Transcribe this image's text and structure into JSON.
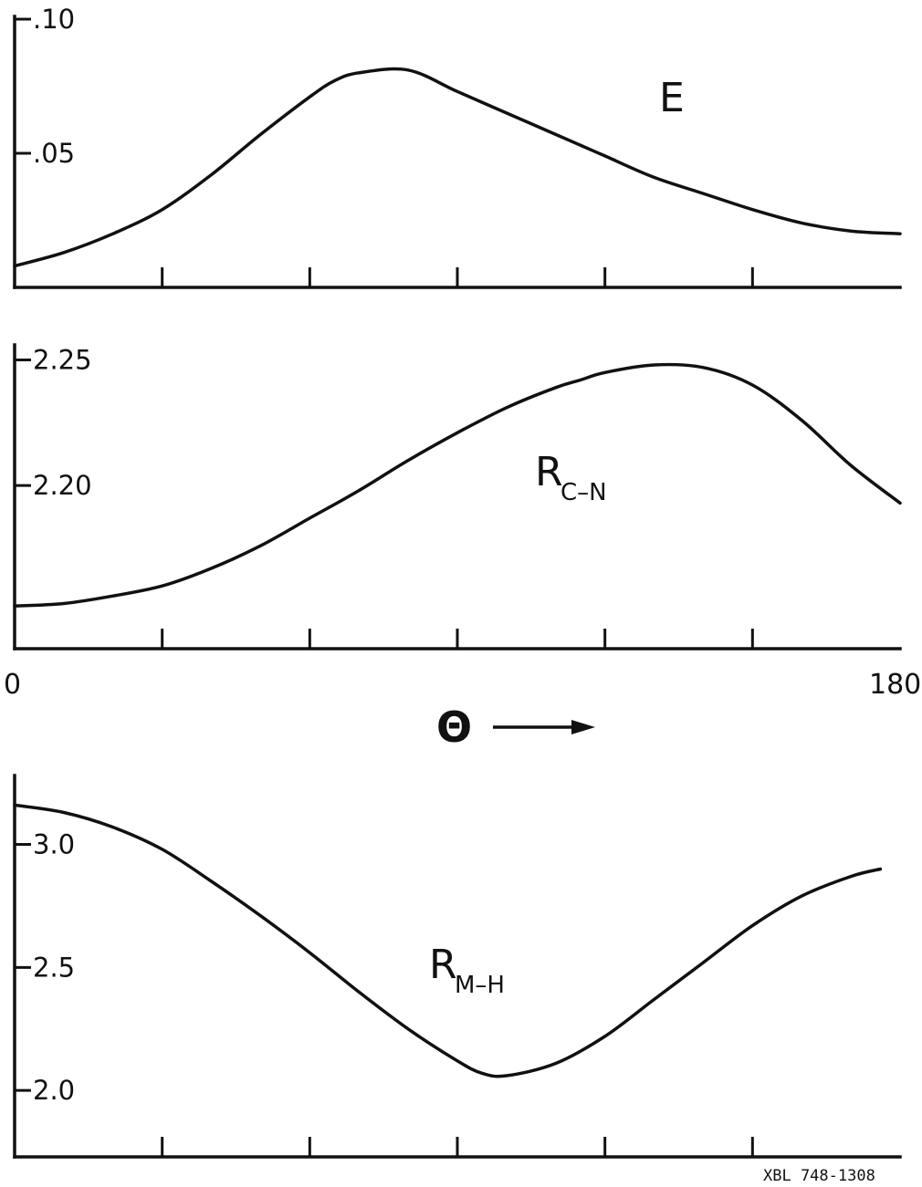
{
  "figure": {
    "x_axis": {
      "start_label": "0",
      "end_label": "180",
      "symbol": "Θ",
      "range": [
        0,
        180
      ]
    },
    "code_label": "XBL 748-1308"
  },
  "chart_data": [
    {
      "type": "line",
      "panel": "E",
      "label": {
        "main": "E",
        "sub": ""
      },
      "xlim": [
        0,
        180
      ],
      "ylim": [
        0.0,
        0.101
      ],
      "yticks": [
        {
          "value": 0.1,
          "label": ".10"
        },
        {
          "value": 0.05,
          "label": ".05"
        }
      ],
      "x": [
        0,
        10,
        20,
        30,
        40,
        50,
        60,
        65,
        70,
        80,
        90,
        100,
        110,
        120,
        130,
        140,
        150,
        160,
        170,
        180
      ],
      "y": [
        0.008,
        0.013,
        0.02,
        0.029,
        0.042,
        0.057,
        0.071,
        0.077,
        0.08,
        0.081,
        0.073,
        0.065,
        0.057,
        0.049,
        0.041,
        0.035,
        0.029,
        0.024,
        0.021,
        0.02
      ],
      "series": [
        {
          "values": [
            0.008,
            0.013,
            0.02,
            0.029,
            0.042,
            0.057,
            0.071,
            0.077,
            0.08,
            0.081,
            0.073,
            0.065,
            0.057,
            0.049,
            0.041,
            0.035,
            0.029,
            0.024,
            0.021,
            0.02
          ]
        }
      ],
      "xticks": [
        0,
        30,
        60,
        90,
        120,
        150,
        180
      ],
      "grid": false
    },
    {
      "type": "line",
      "panel": "R_C-N",
      "label": {
        "main": "R",
        "sub": "C–N"
      },
      "xlim": [
        0,
        180
      ],
      "ylim": [
        2.135,
        2.256
      ],
      "yticks": [
        {
          "value": 2.25,
          "label": "2.25"
        },
        {
          "value": 2.2,
          "label": "2.20"
        }
      ],
      "x": [
        0,
        10,
        20,
        30,
        40,
        50,
        60,
        70,
        80,
        90,
        100,
        110,
        115,
        120,
        130,
        140,
        150,
        160,
        170,
        180
      ],
      "y": [
        2.152,
        2.153,
        2.156,
        2.16,
        2.167,
        2.176,
        2.187,
        2.198,
        2.21,
        2.221,
        2.231,
        2.239,
        2.242,
        2.245,
        2.248,
        2.247,
        2.24,
        2.226,
        2.208,
        2.193
      ],
      "series": [
        {
          "values": [
            2.152,
            2.153,
            2.156,
            2.16,
            2.167,
            2.176,
            2.187,
            2.198,
            2.21,
            2.221,
            2.231,
            2.239,
            2.242,
            2.245,
            2.248,
            2.247,
            2.24,
            2.226,
            2.208,
            2.193
          ]
        }
      ],
      "xticks": [
        0,
        30,
        60,
        90,
        120,
        150,
        180
      ],
      "grid": false
    },
    {
      "type": "line",
      "panel": "R_M-H",
      "label": {
        "main": "R",
        "sub": "M–H"
      },
      "xlim": [
        0,
        180
      ],
      "ylim": [
        1.73,
        3.28
      ],
      "yticks": [
        {
          "value": 3.0,
          "label": "3.0"
        },
        {
          "value": 2.5,
          "label": "2.5"
        },
        {
          "value": 2.0,
          "label": "2.0"
        }
      ],
      "x": [
        0,
        10,
        20,
        30,
        40,
        50,
        60,
        70,
        80,
        90,
        95,
        100,
        110,
        120,
        130,
        140,
        150,
        160,
        170,
        176
      ],
      "y": [
        3.16,
        3.13,
        3.07,
        2.98,
        2.85,
        2.71,
        2.56,
        2.4,
        2.25,
        2.12,
        2.07,
        2.06,
        2.11,
        2.22,
        2.37,
        2.52,
        2.67,
        2.79,
        2.87,
        2.9
      ],
      "series": [
        {
          "values": [
            3.16,
            3.13,
            3.07,
            2.98,
            2.85,
            2.71,
            2.56,
            2.4,
            2.25,
            2.12,
            2.07,
            2.06,
            2.11,
            2.22,
            2.37,
            2.52,
            2.67,
            2.79,
            2.87,
            2.9
          ]
        }
      ],
      "xticks": [
        0,
        30,
        60,
        90,
        120,
        150,
        180
      ],
      "grid": false
    }
  ]
}
